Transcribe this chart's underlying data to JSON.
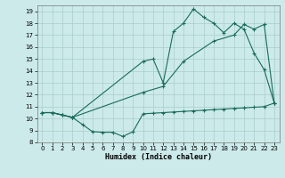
{
  "xlabel": "Humidex (Indice chaleur)",
  "bg_color": "#cceaea",
  "grid_color": "#aacccc",
  "line_color": "#1a6b5a",
  "xlim": [
    -0.5,
    23.5
  ],
  "ylim": [
    8.0,
    19.5
  ],
  "yticks": [
    8,
    9,
    10,
    11,
    12,
    13,
    14,
    15,
    16,
    17,
    18,
    19
  ],
  "xticks": [
    0,
    1,
    2,
    3,
    4,
    5,
    6,
    7,
    8,
    9,
    10,
    11,
    12,
    13,
    14,
    15,
    16,
    17,
    18,
    19,
    20,
    21,
    22,
    23
  ],
  "line1_x": [
    0,
    1,
    2,
    3,
    4,
    5,
    6,
    7,
    8,
    9,
    10,
    11,
    12,
    13,
    14,
    15,
    16,
    17,
    18,
    19,
    20,
    21,
    22,
    23
  ],
  "line1_y": [
    10.5,
    10.5,
    10.3,
    10.1,
    9.5,
    8.9,
    8.85,
    8.85,
    8.5,
    8.9,
    10.4,
    10.45,
    10.5,
    10.55,
    10.6,
    10.65,
    10.7,
    10.75,
    10.8,
    10.85,
    10.9,
    10.95,
    11.0,
    11.3
  ],
  "line2_x": [
    0,
    1,
    2,
    3,
    10,
    11,
    12,
    13,
    14,
    15,
    16,
    17,
    18,
    19,
    20,
    21,
    22,
    23
  ],
  "line2_y": [
    10.5,
    10.5,
    10.3,
    10.1,
    14.8,
    15.0,
    13.0,
    17.3,
    18.0,
    19.2,
    18.5,
    18.0,
    17.2,
    18.0,
    17.5,
    15.5,
    14.1,
    11.3
  ],
  "line3_x": [
    0,
    1,
    2,
    3,
    10,
    12,
    14,
    17,
    19,
    20,
    21,
    22,
    23
  ],
  "line3_y": [
    10.5,
    10.5,
    10.3,
    10.1,
    12.2,
    12.7,
    14.8,
    16.5,
    17.0,
    17.9,
    17.5,
    17.9,
    11.3
  ]
}
